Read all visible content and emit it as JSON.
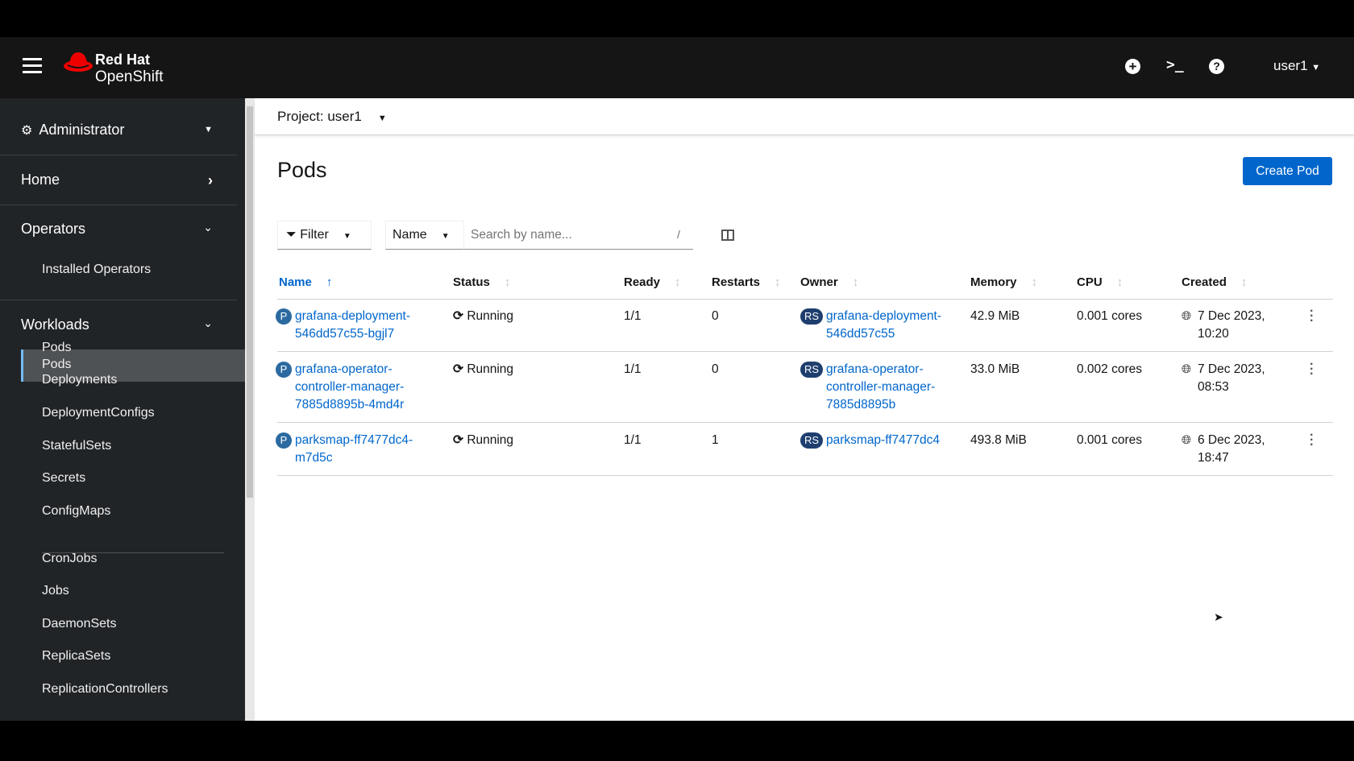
{
  "brand": {
    "line1": "Red Hat",
    "line2": "OpenShift",
    "color": "#ee0000"
  },
  "masthead": {
    "user": "user1",
    "icons": [
      "plus-circle-icon",
      "terminal-icon",
      "help-icon"
    ]
  },
  "sidebar": {
    "perspective": "Administrator",
    "sections": [
      {
        "label": "Home"
      },
      {
        "label": "Operators",
        "items": [
          "Installed Operators"
        ]
      },
      {
        "label": "Workloads"
      }
    ],
    "workloads": [
      "Pods",
      "Deployments",
      "DeploymentConfigs",
      "StatefulSets",
      "Secrets",
      "ConfigMaps",
      "CronJobs",
      "Jobs",
      "DaemonSets",
      "ReplicaSets",
      "ReplicationControllers"
    ],
    "active": "Pods"
  },
  "project": {
    "label": "Project: user1"
  },
  "page": {
    "title": "Pods",
    "create_label": "Create Pod",
    "accent": "#0066cc"
  },
  "toolbar": {
    "filter": "Filter",
    "name_select": "Name",
    "search_placeholder": "Search by name...",
    "shortcut": "/"
  },
  "table": {
    "columns": [
      "Name",
      "Status",
      "Ready",
      "Restarts",
      "Owner",
      "Memory",
      "CPU",
      "Created"
    ],
    "rows": [
      {
        "badge": "P",
        "name": [
          "grafana-deployment-",
          "546dd57c55-bgjl7"
        ],
        "status": "Running",
        "ready": "1/1",
        "restarts": "0",
        "owner_badge": "RS",
        "owner": [
          "grafana-deployment-",
          "546dd57c55"
        ],
        "memory": "42.9 MiB",
        "cpu": "0.001 cores",
        "created": [
          "7 Dec 2023,",
          "10:20"
        ]
      },
      {
        "badge": "P",
        "name": [
          "grafana-operator-",
          "controller-manager-",
          "7885d8895b-4md4r"
        ],
        "status": "Running",
        "ready": "1/1",
        "restarts": "0",
        "owner_badge": "RS",
        "owner": [
          "grafana-operator-",
          "controller-manager-",
          "7885d8895b"
        ],
        "memory": "33.0 MiB",
        "cpu": "0.002 cores",
        "created": [
          "7 Dec 2023,",
          "08:53"
        ]
      },
      {
        "badge": "P",
        "name": [
          "parksmap-ff7477dc4-",
          "m7d5c"
        ],
        "status": "Running",
        "ready": "1/1",
        "restarts": "1",
        "owner_badge": "RS",
        "owner": [
          "parksmap-ff7477dc4"
        ],
        "memory": "493.8 MiB",
        "cpu": "0.001 cores",
        "created": [
          "6 Dec 2023,",
          "18:47"
        ]
      }
    ]
  }
}
